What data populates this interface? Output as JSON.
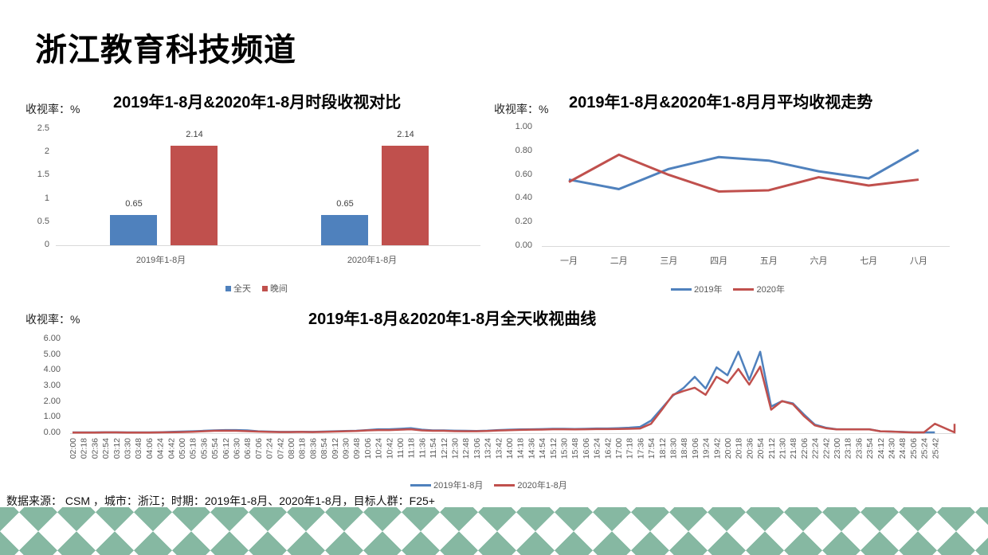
{
  "page": {
    "title": "浙江教育科技频道"
  },
  "footnote": "数据来源： CSM ，城市：浙江；时期：2019年1-8月、2020年1-8月，目标人群：F25+",
  "colors": {
    "blue": "#4f81bd",
    "red": "#c0504d",
    "grid": "#d9d9d9",
    "gingham": "#237d55"
  },
  "chart_data": [
    {
      "type": "bar",
      "title": "2019年1-8月&2020年1-8月时段收视对比",
      "ylabel": "收视率：%",
      "xlabel": "",
      "ylim": [
        0,
        2.5
      ],
      "yticks": [
        "0",
        "0.5",
        "1",
        "1.5",
        "2",
        "2.5"
      ],
      "categories": [
        "2019年1-8月",
        "2020年1-8月"
      ],
      "series": [
        {
          "name": "全天",
          "color": "#4f81bd",
          "values": [
            0.65,
            0.65
          ]
        },
        {
          "name": "晚间",
          "color": "#c0504d",
          "values": [
            2.14,
            2.14
          ]
        }
      ],
      "legend_position": "bottom",
      "grid": false
    },
    {
      "type": "line",
      "title": "2019年1-8月&2020年1-8月月平均收视走势",
      "ylabel": "收视率：%",
      "xlabel": "",
      "ylim": [
        0,
        1.0
      ],
      "yticks": [
        "0.00",
        "0.20",
        "0.40",
        "0.60",
        "0.80",
        "1.00"
      ],
      "categories": [
        "一月",
        "二月",
        "三月",
        "四月",
        "五月",
        "六月",
        "七月",
        "八月"
      ],
      "series": [
        {
          "name": "2019年",
          "color": "#4f81bd",
          "values": [
            0.56,
            0.48,
            0.65,
            0.75,
            0.72,
            0.63,
            0.57,
            0.81
          ]
        },
        {
          "name": "2020年",
          "color": "#c0504d",
          "values": [
            0.54,
            0.77,
            0.6,
            0.46,
            0.47,
            0.58,
            0.51,
            0.56
          ]
        }
      ],
      "legend_position": "bottom",
      "grid": false
    },
    {
      "type": "line",
      "title": "2019年1-8月&2020年1-8月全天收视曲线",
      "ylabel": "收视率：%",
      "xlabel": "",
      "ylim": [
        0,
        6.0
      ],
      "yticks": [
        "0.00",
        "1.00",
        "2.00",
        "3.00",
        "4.00",
        "5.00",
        "6.00"
      ],
      "categories": [
        "02:00",
        "02:18",
        "02:36",
        "02:54",
        "03:12",
        "03:30",
        "03:48",
        "04:06",
        "04:24",
        "04:42",
        "05:00",
        "05:18",
        "05:36",
        "05:54",
        "06:12",
        "06:30",
        "06:48",
        "07:06",
        "07:24",
        "07:42",
        "08:00",
        "08:18",
        "08:36",
        "08:54",
        "09:12",
        "09:30",
        "09:48",
        "10:06",
        "10:24",
        "10:42",
        "11:00",
        "11:18",
        "11:36",
        "11:54",
        "12:12",
        "12:30",
        "12:48",
        "13:06",
        "13:24",
        "13:42",
        "14:00",
        "14:18",
        "14:36",
        "14:54",
        "15:12",
        "15:30",
        "15:48",
        "16:06",
        "16:24",
        "16:42",
        "17:00",
        "17:18",
        "17:36",
        "17:54",
        "18:12",
        "18:30",
        "18:48",
        "19:06",
        "19:24",
        "19:42",
        "20:00",
        "20:18",
        "20:36",
        "20:54",
        "21:12",
        "21:30",
        "21:48",
        "22:06",
        "22:24",
        "22:42",
        "23:00",
        "23:18",
        "23:36",
        "23:54",
        "24:12",
        "24:30",
        "24:48",
        "25:06",
        "25:24",
        "25:42"
      ],
      "series": [
        {
          "name": "2019年1-8月",
          "color": "#4f81bd",
          "values": [
            0.05,
            0.05,
            0.05,
            0.06,
            0.06,
            0.05,
            0.05,
            0.05,
            0.06,
            0.08,
            0.1,
            0.12,
            0.15,
            0.18,
            0.2,
            0.2,
            0.18,
            0.12,
            0.1,
            0.08,
            0.08,
            0.09,
            0.08,
            0.1,
            0.12,
            0.14,
            0.15,
            0.2,
            0.25,
            0.25,
            0.28,
            0.32,
            0.22,
            0.18,
            0.18,
            0.16,
            0.15,
            0.14,
            0.16,
            0.2,
            0.22,
            0.24,
            0.25,
            0.26,
            0.28,
            0.28,
            0.27,
            0.28,
            0.3,
            0.3,
            0.32,
            0.35,
            0.4,
            0.8,
            1.6,
            2.4,
            2.9,
            3.6,
            2.85,
            4.2,
            3.7,
            5.2,
            3.4,
            5.2,
            1.7,
            2.05,
            1.9,
            1.2,
            0.55,
            0.35,
            0.25,
            0.25,
            0.25,
            0.25,
            0.12,
            0.1,
            0.08,
            0.05,
            0.05,
            0.05
          ]
        },
        {
          "name": "2020年1-8月",
          "color": "#c0504d",
          "values": [
            0.04,
            0.04,
            0.04,
            0.05,
            0.05,
            0.04,
            0.04,
            0.04,
            0.05,
            0.06,
            0.07,
            0.09,
            0.12,
            0.15,
            0.16,
            0.15,
            0.13,
            0.1,
            0.08,
            0.07,
            0.07,
            0.08,
            0.07,
            0.08,
            0.1,
            0.12,
            0.14,
            0.18,
            0.2,
            0.2,
            0.22,
            0.25,
            0.18,
            0.15,
            0.15,
            0.13,
            0.12,
            0.12,
            0.14,
            0.17,
            0.19,
            0.21,
            0.22,
            0.23,
            0.25,
            0.25,
            0.24,
            0.25,
            0.26,
            0.26,
            0.27,
            0.28,
            0.3,
            0.6,
            1.5,
            2.45,
            2.7,
            2.9,
            2.45,
            3.6,
            3.2,
            4.1,
            3.1,
            4.25,
            1.5,
            2.05,
            1.85,
            1.1,
            0.5,
            0.32,
            0.24,
            0.24,
            0.24,
            0.24,
            0.12,
            0.1,
            0.07,
            0.05,
            0.05,
            0.6
          ]
        }
      ],
      "legend_position": "bottom",
      "grid": false
    }
  ]
}
